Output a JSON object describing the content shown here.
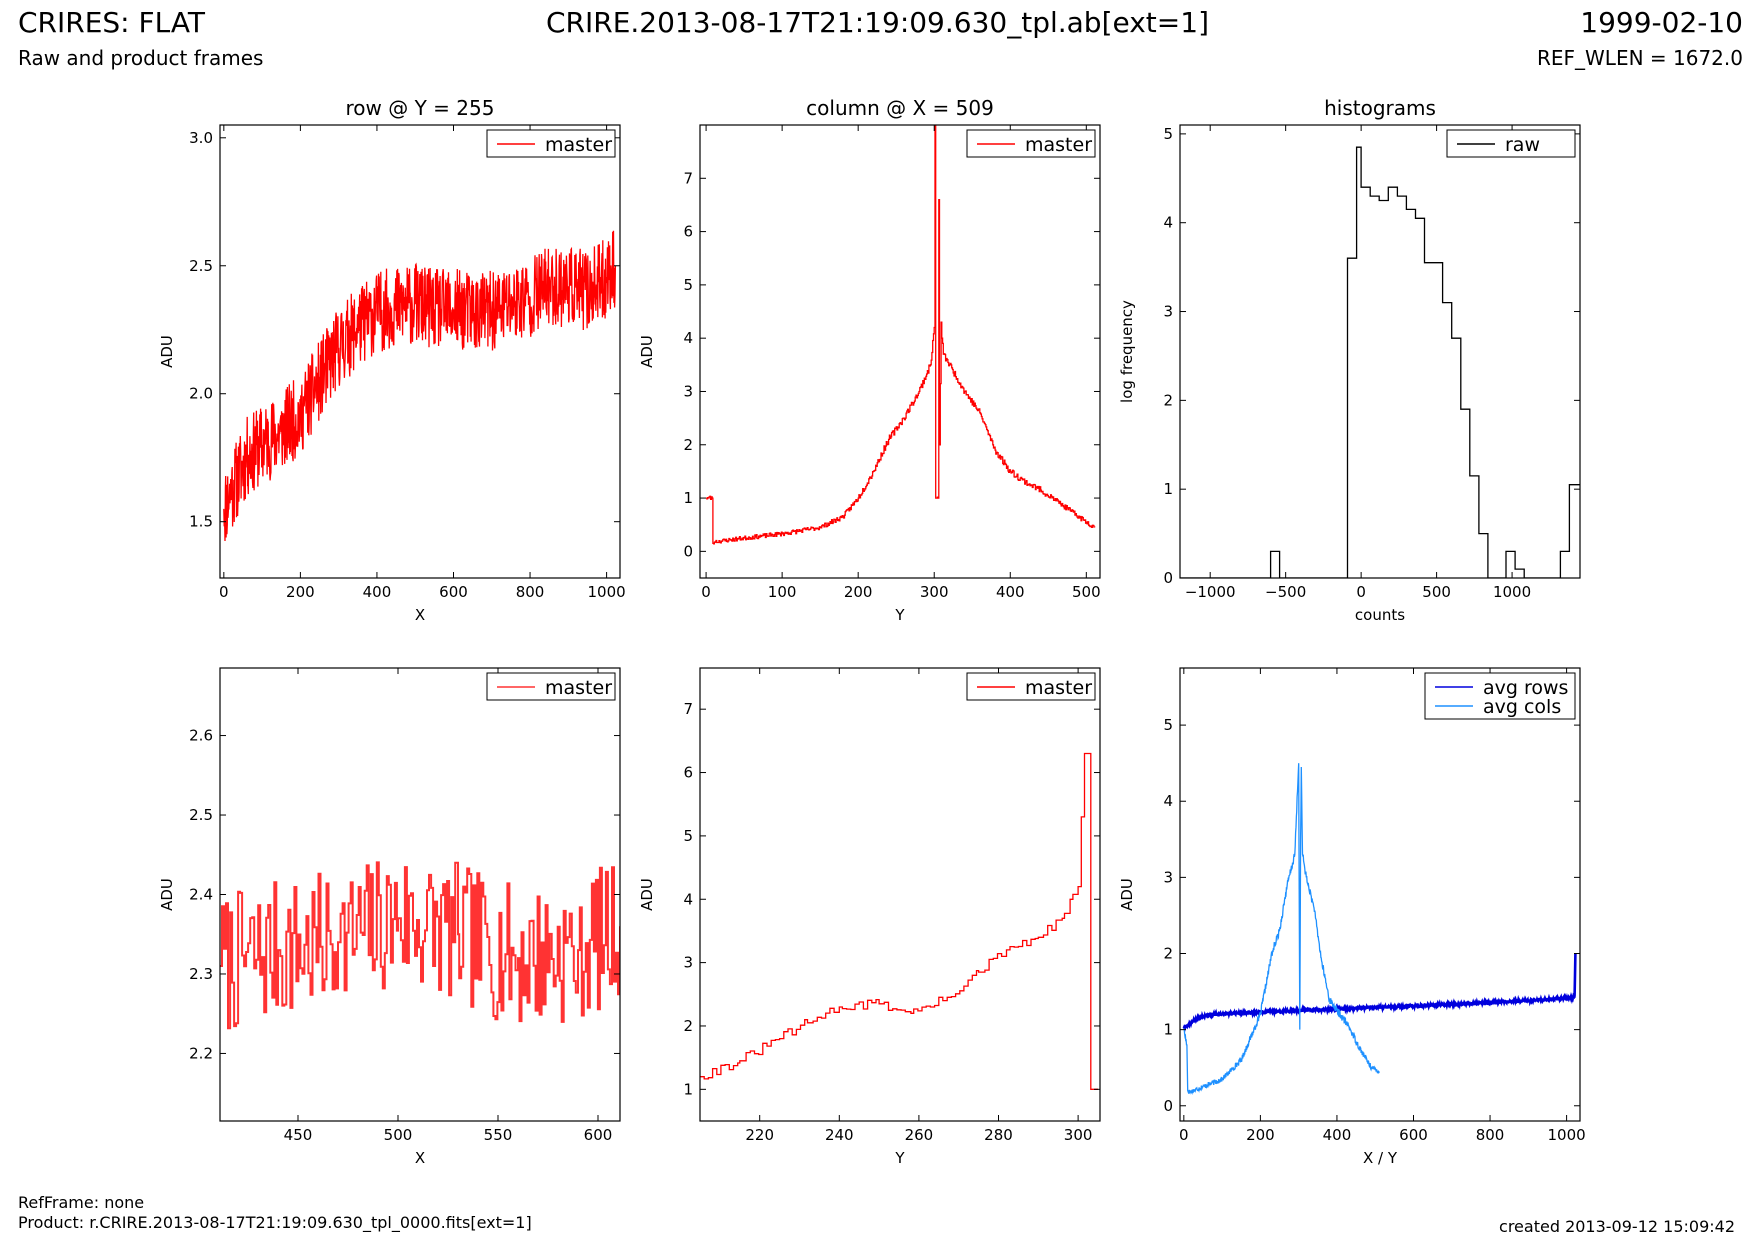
{
  "header": {
    "left_title": "CRIRES: FLAT",
    "left_subtitle": "Raw and product frames",
    "center_title": "CRIRE.2013-08-17T21:19:09.630_tpl.ab[ext=1]",
    "right_title": "1999-02-10",
    "right_subtitle": "REF_WLEN = 1672.0"
  },
  "footer": {
    "refframe": "RefFrame: none",
    "product": "Product: r.CRIRE.2013-08-17T21:19:09.630_tpl_0000.fits[ext=1]",
    "created": "created 2013-09-12 15:09:42"
  },
  "colors": {
    "master": "#ff0000",
    "master_zoom": "#ff3333",
    "raw": "#000000",
    "avg_rows": "#0000dd",
    "avg_cols": "#1e90ff"
  },
  "chart_data": [
    {
      "id": "p1",
      "type": "line",
      "title": "row @ Y = 255",
      "xlabel": "X",
      "ylabel": "ADU",
      "xlim": [
        -10,
        1035
      ],
      "ylim": [
        1.28,
        3.05
      ],
      "xticks": [
        0,
        200,
        400,
        600,
        800,
        1000
      ],
      "yticks": [
        1.5,
        2.0,
        2.5,
        3.0
      ],
      "ytick_decimals": 1,
      "legend": {
        "position": "top-right",
        "entries": [
          "master"
        ]
      },
      "series": [
        {
          "name": "master",
          "color": "#ff0000",
          "step": false,
          "noise": 0.16,
          "seed": 11,
          "n": 1024,
          "x": [
            0,
            20,
            60,
            100,
            150,
            200,
            250,
            300,
            350,
            400,
            450,
            500,
            550,
            600,
            650,
            700,
            750,
            800,
            850,
            900,
            950,
            1000,
            1023
          ],
          "y": [
            1.55,
            1.62,
            1.75,
            1.8,
            1.85,
            1.92,
            2.05,
            2.18,
            2.26,
            2.32,
            2.34,
            2.35,
            2.33,
            2.33,
            2.32,
            2.32,
            2.35,
            2.38,
            2.42,
            2.42,
            2.4,
            2.45,
            2.5
          ]
        }
      ]
    },
    {
      "id": "p2",
      "type": "line",
      "title": "column @ X = 509",
      "xlabel": "Y",
      "ylabel": "ADU",
      "xlim": [
        -8,
        518
      ],
      "ylim": [
        -0.5,
        8.0
      ],
      "xticks": [
        0,
        100,
        200,
        300,
        400,
        500
      ],
      "yticks": [
        0,
        1,
        2,
        3,
        4,
        5,
        6,
        7
      ],
      "ytick_decimals": 0,
      "legend": {
        "position": "top-right",
        "entries": [
          "master"
        ]
      },
      "series": [
        {
          "name": "master",
          "color": "#ff0000",
          "step": true,
          "noise": 0.06,
          "seed": 23,
          "n": 512,
          "x": [
            0,
            8,
            9,
            12,
            50,
            100,
            150,
            180,
            200,
            220,
            240,
            260,
            280,
            295,
            300,
            301,
            302,
            303,
            305,
            306,
            307,
            309,
            310,
            312,
            320,
            340,
            360,
            380,
            400,
            420,
            440,
            460,
            480,
            500,
            511
          ],
          "y": [
            1.0,
            1.0,
            0.15,
            0.18,
            0.25,
            0.33,
            0.45,
            0.65,
            1.0,
            1.5,
            2.1,
            2.5,
            3.0,
            3.5,
            4.2,
            8.0,
            1.0,
            1.0,
            1.0,
            6.6,
            2.0,
            4.3,
            4.0,
            3.7,
            3.5,
            3.0,
            2.6,
            1.9,
            1.5,
            1.3,
            1.15,
            0.95,
            0.75,
            0.55,
            0.45
          ]
        }
      ]
    },
    {
      "id": "p3",
      "type": "line",
      "title": "histograms",
      "xlabel": "counts",
      "ylabel": "log frequency",
      "xlim": [
        -1200,
        1450
      ],
      "ylim": [
        0,
        5.1
      ],
      "xticks": [
        -1000,
        -500,
        0,
        500,
        1000
      ],
      "yticks": [
        0,
        1,
        2,
        3,
        4,
        5
      ],
      "ytick_decimals": 0,
      "legend": {
        "position": "top-right",
        "entries": [
          "raw"
        ]
      },
      "series": [
        {
          "name": "raw",
          "color": "#000000",
          "step": true,
          "noise": 0,
          "x": [
            -1300,
            -600,
            -540,
            -90,
            -30,
            0,
            60,
            120,
            180,
            240,
            300,
            360,
            420,
            480,
            540,
            600,
            660,
            720,
            780,
            840,
            900,
            960,
            1020,
            1080,
            1140,
            1200,
            1260,
            1320,
            1380,
            1450
          ],
          "y": [
            0,
            0.3,
            0,
            3.6,
            4.85,
            4.4,
            4.3,
            4.25,
            4.4,
            4.3,
            4.15,
            4.05,
            3.55,
            3.55,
            3.1,
            2.7,
            1.9,
            1.15,
            0.5,
            0,
            0,
            0.3,
            0.1,
            0,
            0,
            0,
            0,
            0.3,
            1.05,
            1.05
          ]
        }
      ]
    },
    {
      "id": "p4",
      "type": "line",
      "title": "",
      "xlabel": "X",
      "ylabel": "ADU",
      "xlim": [
        411,
        611
      ],
      "ylim": [
        2.115,
        2.685
      ],
      "xticks": [
        450,
        500,
        550,
        600
      ],
      "yticks": [
        2.2,
        2.3,
        2.4,
        2.5,
        2.6
      ],
      "ytick_decimals": 1,
      "legend": {
        "position": "top-right",
        "entries": [
          "master"
        ]
      },
      "series": [
        {
          "name": "master",
          "color": "#ff3333",
          "step": true,
          "noise": 0.09,
          "seed": 7,
          "n": 200,
          "width": 2.0,
          "x": [
            411,
            440,
            470,
            500,
            530,
            560,
            590,
            611
          ],
          "y": [
            2.31,
            2.33,
            2.34,
            2.37,
            2.35,
            2.32,
            2.33,
            2.36
          ]
        }
      ]
    },
    {
      "id": "p5",
      "type": "line",
      "title": "",
      "xlabel": "Y",
      "ylabel": "ADU",
      "xlim": [
        205,
        305.5
      ],
      "ylim": [
        0.5,
        7.65
      ],
      "xticks": [
        220,
        240,
        260,
        280,
        300
      ],
      "yticks": [
        1,
        2,
        3,
        4,
        5,
        6,
        7
      ],
      "ytick_decimals": 0,
      "legend": {
        "position": "top-right",
        "entries": [
          "master"
        ]
      },
      "series": [
        {
          "name": "master",
          "color": "#ff0000",
          "step": true,
          "noise": 0.08,
          "seed": 31,
          "n": 96,
          "x": [
            205,
            215,
            225,
            232,
            240,
            250,
            258,
            266,
            275,
            282,
            290,
            296,
            298,
            300,
            300.8,
            301.6,
            302.4,
            303.2,
            304,
            305
          ],
          "y": [
            1.2,
            1.45,
            1.8,
            2.05,
            2.3,
            2.35,
            2.2,
            2.4,
            2.85,
            3.2,
            3.4,
            3.7,
            4.0,
            4.2,
            5.3,
            6.3,
            7.7,
            1.0,
            1.0,
            1.0
          ]
        }
      ]
    },
    {
      "id": "p6",
      "type": "line",
      "title": "",
      "xlabel": "X / Y",
      "ylabel": "ADU",
      "xlim": [
        -10,
        1035
      ],
      "ylim": [
        -0.2,
        5.75
      ],
      "xticks": [
        0,
        200,
        400,
        600,
        800,
        1000
      ],
      "yticks": [
        0,
        1,
        2,
        3,
        4,
        5
      ],
      "ytick_decimals": 0,
      "legend": {
        "position": "top-right",
        "entries": [
          "avg rows",
          "avg cols"
        ]
      },
      "series": [
        {
          "name": "avg rows",
          "color": "#0000dd",
          "step": false,
          "noise": 0.018,
          "seed": 5,
          "n": 1024,
          "width": 2.6,
          "x": [
            0,
            20,
            50,
            100,
            300,
            600,
            900,
            1020,
            1021,
            1023
          ],
          "y": [
            1.02,
            1.1,
            1.18,
            1.21,
            1.25,
            1.31,
            1.38,
            1.42,
            1.45,
            2.0
          ]
        },
        {
          "name": "avg cols",
          "color": "#1e90ff",
          "step": false,
          "noise": 0.05,
          "seed": 17,
          "n": 512,
          "width": 1.3,
          "x": [
            0,
            8,
            10,
            15,
            50,
            100,
            150,
            200,
            230,
            250,
            270,
            290,
            300,
            303,
            305,
            307,
            310,
            320,
            340,
            360,
            380,
            400,
            430,
            460,
            490,
            511
          ],
          "y": [
            1.0,
            0.8,
            0.2,
            0.18,
            0.25,
            0.35,
            0.6,
            1.2,
            2.0,
            2.3,
            2.9,
            3.3,
            4.5,
            1.0,
            3.5,
            4.45,
            3.3,
            3.0,
            2.6,
            1.9,
            1.4,
            1.25,
            1.05,
            0.75,
            0.5,
            0.45
          ]
        }
      ]
    }
  ]
}
